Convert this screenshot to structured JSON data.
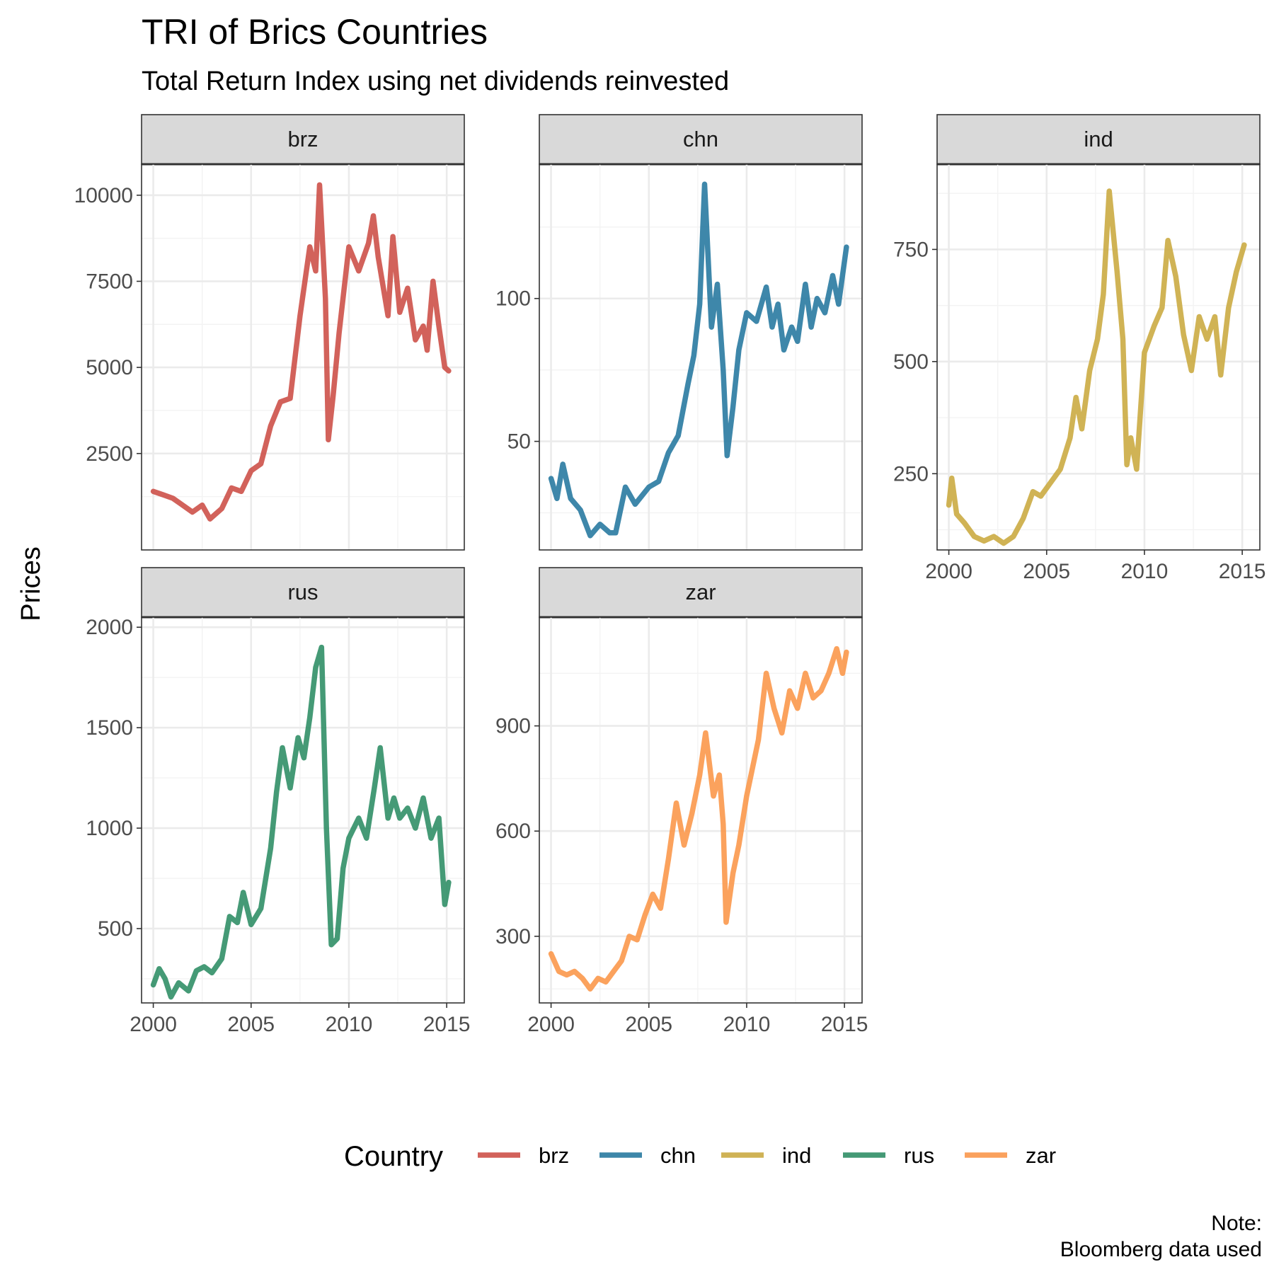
{
  "chart_data": {
    "type": "line",
    "title": "TRI of Brics Countries",
    "subtitle": "Total Return Index using net dividends reinvested",
    "ylabel": "Prices",
    "xlabel": "",
    "caption": [
      "Note:",
      "Bloomberg data used"
    ],
    "legend": {
      "title": "Country",
      "position": "bottom"
    },
    "grid": true,
    "x_ticks": [
      2000,
      2005,
      2010,
      2015
    ],
    "xlim": [
      1999.4,
      2015.9
    ],
    "facets": [
      {
        "name": "brz",
        "color": "#cc4c44",
        "ylim": [
          -300,
          10900
        ],
        "y_ticks": [
          2500,
          5000,
          7500,
          10000
        ],
        "x": [
          2000,
          2000.5,
          2001,
          2001.5,
          2002,
          2002.5,
          2002.9,
          2003.5,
          2004,
          2004.5,
          2005,
          2005.5,
          2006,
          2006.5,
          2007,
          2007.5,
          2008,
          2008.3,
          2008.5,
          2008.8,
          2008.95,
          2009.2,
          2009.5,
          2010,
          2010.5,
          2011,
          2011.25,
          2011.5,
          2012,
          2012.25,
          2012.6,
          2013,
          2013.4,
          2013.8,
          2014,
          2014.3,
          2014.6,
          2014.9,
          2015.1
        ],
        "y": [
          1400,
          1300,
          1200,
          1000,
          800,
          1000,
          600,
          900,
          1500,
          1400,
          2000,
          2200,
          3300,
          4000,
          4100,
          6500,
          8500,
          7800,
          10300,
          7000,
          2900,
          4200,
          6000,
          8500,
          7800,
          8600,
          9400,
          8200,
          6500,
          8800,
          6600,
          7300,
          5800,
          6200,
          5500,
          7500,
          6200,
          5000,
          4900
        ]
      },
      {
        "name": "chn",
        "color": "#23769e",
        "ylim": [
          12,
          147
        ],
        "y_ticks": [
          50,
          100
        ],
        "x": [
          2000,
          2000.3,
          2000.6,
          2001,
          2001.5,
          2002,
          2002.5,
          2003,
          2003.3,
          2003.8,
          2004.3,
          2005,
          2005.5,
          2006,
          2006.5,
          2007,
          2007.3,
          2007.6,
          2007.85,
          2008.2,
          2008.5,
          2008.8,
          2009,
          2009.3,
          2009.6,
          2010,
          2010.5,
          2011,
          2011.3,
          2011.6,
          2011.9,
          2012.3,
          2012.6,
          2013,
          2013.3,
          2013.6,
          2014,
          2014.4,
          2014.7,
          2015.1
        ],
        "y": [
          37,
          30,
          42,
          30,
          26,
          17,
          21,
          18,
          18,
          34,
          28,
          34,
          36,
          46,
          52,
          70,
          80,
          98,
          140,
          90,
          105,
          75,
          45,
          62,
          82,
          95,
          92,
          104,
          90,
          98,
          82,
          90,
          85,
          105,
          90,
          100,
          95,
          108,
          98,
          118
        ]
      },
      {
        "name": "ind",
        "color": "#c9a83e",
        "ylim": [
          80,
          940
        ],
        "y_ticks": [
          250,
          500,
          750
        ],
        "x": [
          2000,
          2000.15,
          2000.4,
          2000.8,
          2001.3,
          2001.8,
          2002.3,
          2002.8,
          2003.3,
          2003.8,
          2004.3,
          2004.7,
          2005.2,
          2005.7,
          2006.2,
          2006.5,
          2006.8,
          2007.2,
          2007.6,
          2007.9,
          2008.2,
          2008.6,
          2008.9,
          2009.1,
          2009.3,
          2009.6,
          2010,
          2010.5,
          2010.9,
          2011.2,
          2011.6,
          2012,
          2012.4,
          2012.8,
          2013.2,
          2013.6,
          2013.9,
          2014.3,
          2014.7,
          2015.1
        ],
        "y": [
          180,
          240,
          160,
          140,
          110,
          100,
          110,
          95,
          110,
          150,
          210,
          200,
          230,
          260,
          330,
          420,
          350,
          480,
          550,
          650,
          880,
          700,
          550,
          270,
          330,
          260,
          520,
          580,
          620,
          770,
          690,
          560,
          480,
          600,
          550,
          600,
          470,
          620,
          700,
          760
        ]
      },
      {
        "name": "rus",
        "color": "#2b8c63",
        "ylim": [
          130,
          2050
        ],
        "y_ticks": [
          500,
          1000,
          1500,
          2000
        ],
        "x": [
          2000,
          2000.3,
          2000.6,
          2000.9,
          2001.3,
          2001.8,
          2002.2,
          2002.6,
          2003,
          2003.5,
          2003.9,
          2004.3,
          2004.6,
          2005,
          2005.5,
          2006,
          2006.3,
          2006.6,
          2007,
          2007.4,
          2007.7,
          2008,
          2008.3,
          2008.6,
          2008.85,
          2009.1,
          2009.4,
          2009.7,
          2010,
          2010.5,
          2010.9,
          2011.3,
          2011.6,
          2012,
          2012.3,
          2012.6,
          2013,
          2013.4,
          2013.8,
          2014.2,
          2014.6,
          2014.9,
          2015.1
        ],
        "y": [
          220,
          300,
          250,
          160,
          230,
          190,
          290,
          310,
          280,
          350,
          560,
          530,
          680,
          520,
          600,
          900,
          1180,
          1400,
          1200,
          1450,
          1350,
          1550,
          1800,
          1900,
          1000,
          420,
          450,
          800,
          950,
          1050,
          950,
          1200,
          1400,
          1050,
          1150,
          1050,
          1100,
          1000,
          1150,
          950,
          1050,
          620,
          730
        ]
      },
      {
        "name": "zar",
        "color": "#fa9547",
        "ylim": [
          110,
          1210
        ],
        "y_ticks": [
          300,
          600,
          900
        ],
        "x": [
          2000,
          2000.4,
          2000.8,
          2001.2,
          2001.6,
          2002,
          2002.4,
          2002.8,
          2003.2,
          2003.6,
          2004,
          2004.4,
          2004.8,
          2005.2,
          2005.6,
          2006,
          2006.4,
          2006.8,
          2007.2,
          2007.6,
          2007.9,
          2008.3,
          2008.6,
          2008.8,
          2008.95,
          2009.3,
          2009.6,
          2010,
          2010.3,
          2010.6,
          2011,
          2011.4,
          2011.8,
          2012.2,
          2012.6,
          2013,
          2013.4,
          2013.8,
          2014.2,
          2014.6,
          2014.9,
          2015.1
        ],
        "y": [
          250,
          200,
          190,
          200,
          180,
          150,
          180,
          170,
          200,
          230,
          300,
          290,
          360,
          420,
          380,
          520,
          680,
          560,
          650,
          760,
          880,
          700,
          760,
          620,
          340,
          480,
          560,
          700,
          780,
          860,
          1050,
          950,
          880,
          1000,
          950,
          1050,
          980,
          1000,
          1050,
          1120,
          1050,
          1110
        ]
      }
    ]
  }
}
